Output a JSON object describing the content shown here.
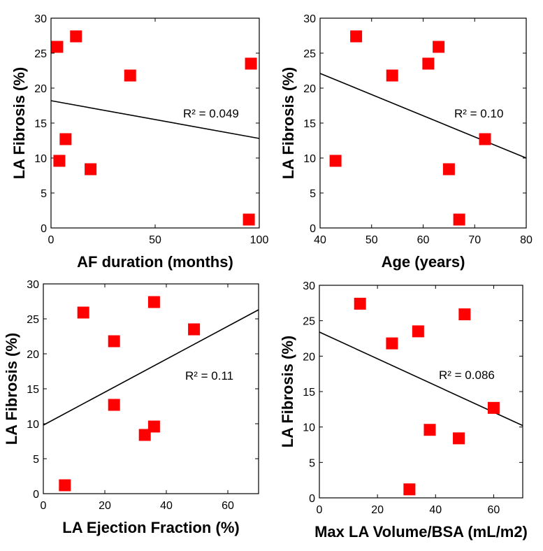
{
  "chart_data": [
    {
      "type": "scatter",
      "xlabel": "AF duration (months)",
      "ylabel": "LA Fibrosis (%)",
      "xlim": [
        0,
        100
      ],
      "ylim": [
        0,
        30
      ],
      "xticks": [
        0,
        50,
        100
      ],
      "yticks": [
        0,
        5,
        10,
        15,
        20,
        25,
        30
      ],
      "points": [
        {
          "x": 3,
          "y": 25.9
        },
        {
          "x": 12,
          "y": 27.4
        },
        {
          "x": 38,
          "y": 21.8
        },
        {
          "x": 96,
          "y": 23.5
        },
        {
          "x": 7,
          "y": 12.7
        },
        {
          "x": 4,
          "y": 9.6
        },
        {
          "x": 19,
          "y": 8.4
        },
        {
          "x": 95,
          "y": 1.2
        }
      ],
      "fit_line": {
        "x": [
          0,
          100
        ],
        "y": [
          18.2,
          12.8
        ]
      },
      "r2_label": "R² = 0.049",
      "marker_color": "#ff0000"
    },
    {
      "type": "scatter",
      "xlabel": "Age (years)",
      "ylabel": "LA Fibrosis (%)",
      "xlim": [
        40,
        80
      ],
      "ylim": [
        0,
        30
      ],
      "xticks": [
        40,
        50,
        60,
        70,
        80
      ],
      "yticks": [
        0,
        5,
        10,
        15,
        20,
        25,
        30
      ],
      "points": [
        {
          "x": 47,
          "y": 27.4
        },
        {
          "x": 63,
          "y": 25.9
        },
        {
          "x": 61,
          "y": 23.5
        },
        {
          "x": 54,
          "y": 21.8
        },
        {
          "x": 72,
          "y": 12.7
        },
        {
          "x": 43,
          "y": 9.6
        },
        {
          "x": 65,
          "y": 8.4
        },
        {
          "x": 67,
          "y": 1.2
        }
      ],
      "fit_line": {
        "x": [
          40,
          80
        ],
        "y": [
          22.1,
          10.0
        ]
      },
      "r2_label": "R² = 0.10",
      "marker_color": "#ff0000"
    },
    {
      "type": "scatter",
      "xlabel": "LA Ejection Fraction (%)",
      "ylabel": "LA Fibrosis (%)",
      "xlim": [
        0,
        70
      ],
      "ylim": [
        0,
        30
      ],
      "xticks": [
        0,
        20,
        40,
        60
      ],
      "yticks": [
        0,
        5,
        10,
        15,
        20,
        25,
        30
      ],
      "points": [
        {
          "x": 36,
          "y": 27.4
        },
        {
          "x": 13,
          "y": 25.9
        },
        {
          "x": 49,
          "y": 23.5
        },
        {
          "x": 23,
          "y": 21.8
        },
        {
          "x": 23,
          "y": 12.7
        },
        {
          "x": 36,
          "y": 9.6
        },
        {
          "x": 33,
          "y": 8.4
        },
        {
          "x": 7,
          "y": 1.2
        }
      ],
      "fit_line": {
        "x": [
          0,
          70
        ],
        "y": [
          9.8,
          26.3
        ]
      },
      "r2_label": "R² = 0.11",
      "marker_color": "#ff0000"
    },
    {
      "type": "scatter",
      "xlabel": "Max LA Volume/BSA (mL/m2)",
      "ylabel": "LA Fibrosis (%)",
      "xlim": [
        0,
        70
      ],
      "ylim": [
        0,
        30
      ],
      "xticks": [
        0,
        20,
        40,
        60
      ],
      "yticks": [
        0,
        5,
        10,
        15,
        20,
        25,
        30
      ],
      "points": [
        {
          "x": 14,
          "y": 27.4
        },
        {
          "x": 50,
          "y": 25.9
        },
        {
          "x": 34,
          "y": 23.5
        },
        {
          "x": 25,
          "y": 21.8
        },
        {
          "x": 60,
          "y": 12.7
        },
        {
          "x": 38,
          "y": 9.6
        },
        {
          "x": 48,
          "y": 8.4
        },
        {
          "x": 31,
          "y": 1.2
        }
      ],
      "fit_line": {
        "x": [
          0,
          70
        ],
        "y": [
          23.4,
          10.2
        ]
      },
      "r2_label": "R² = 0.086",
      "marker_color": "#ff0000"
    }
  ]
}
